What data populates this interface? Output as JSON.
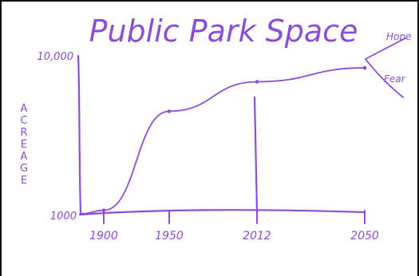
{
  "chart_data": {
    "type": "line",
    "title": "Public Park Space",
    "ylabel": "ACREAGE",
    "xlabel": "",
    "x_ticks": [
      "1900",
      "1950",
      "2012",
      "2050"
    ],
    "y_ticks": [
      "1000",
      "10,000"
    ],
    "xlim": [
      1890,
      2055
    ],
    "ylim": [
      1000,
      10000
    ],
    "series": [
      {
        "x": [
          1890,
          1900,
          1950,
          2012,
          2050
        ],
        "y": [
          1000,
          1200,
          6900,
          8600,
          9400
        ]
      }
    ],
    "annotations": {
      "hope": "Hope",
      "fear": "Fear"
    },
    "marker_year": 2012,
    "color": "#8a4fd8"
  }
}
